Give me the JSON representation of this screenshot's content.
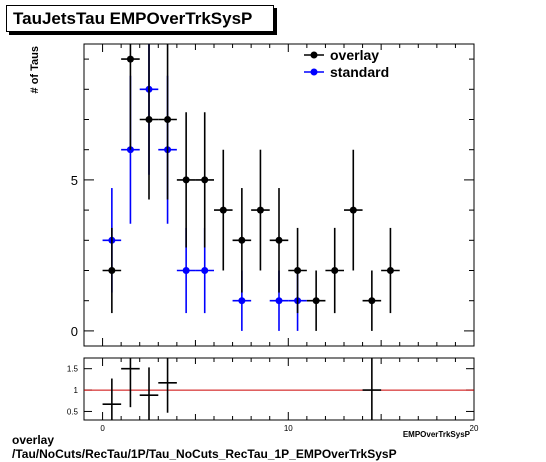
{
  "title": "TauJetsTau EMPOverTrkSysP",
  "footer": {
    "line1": "overlay",
    "line2": "/Tau/NoCuts/RecTau/1P/Tau_NoCuts_RecTau_1P_EMPOverTrkSysP"
  },
  "colors": {
    "overlay": "#000000",
    "standard": "#0000ff",
    "ratio_line": "#cc0000"
  },
  "chart_data": [
    {
      "type": "scatter",
      "title": "TauJetsTau EMPOverTrkSysP",
      "xlabel": "EMPOverTrkSysP",
      "ylabel": "# of Taus",
      "xlim": [
        -1,
        20
      ],
      "ylim": [
        -0.5,
        9.5
      ],
      "y_ticks": [
        0,
        5
      ],
      "legend": {
        "placement": "top-right",
        "entries": [
          "overlay",
          "standard"
        ]
      },
      "series": [
        {
          "name": "overlay",
          "color": "#000000",
          "x": [
            0.5,
            1.5,
            2.5,
            3.5,
            4.5,
            5.5,
            6.5,
            7.5,
            8.5,
            9.5,
            10.5,
            11.5,
            12.5,
            13.5,
            14.5,
            15.5
          ],
          "x_err": 0.5,
          "y": [
            2,
            9,
            7,
            7,
            5,
            5,
            4,
            3,
            4,
            3,
            2,
            1,
            2,
            4,
            1,
            2
          ],
          "y_err": [
            1.41,
            3,
            2.65,
            2.65,
            2.24,
            2.24,
            2,
            1.73,
            2,
            1.73,
            1.41,
            1,
            1.41,
            2,
            1,
            1.41
          ]
        },
        {
          "name": "standard",
          "color": "#0000ff",
          "x": [
            0.5,
            1.5,
            2.5,
            3.5,
            4.5,
            5.5,
            7.5,
            9.5,
            10.5
          ],
          "x_err": 0.5,
          "y": [
            3,
            6,
            8,
            6,
            2,
            2,
            1,
            1,
            1
          ],
          "y_err": [
            1.73,
            2.45,
            2.83,
            2.45,
            1.41,
            1.41,
            1,
            1,
            1
          ]
        }
      ]
    },
    {
      "type": "scatter",
      "xlabel": "EMPOverTrkSysP",
      "xlim": [
        -1,
        20
      ],
      "ylim": [
        0.3,
        1.75
      ],
      "x_ticks": [
        0,
        10,
        20
      ],
      "y_ticks": [
        "0.5",
        "1",
        "1.5"
      ],
      "reference_line": 1,
      "points": {
        "x": [
          0.5,
          1.5,
          2.5,
          3.5,
          14.5
        ],
        "x_err": 0.5,
        "y": [
          0.67,
          1.5,
          0.88,
          1.17,
          1.0
        ],
        "y_err": [
          0.6,
          0.9,
          0.65,
          0.7,
          1.4
        ]
      }
    }
  ]
}
